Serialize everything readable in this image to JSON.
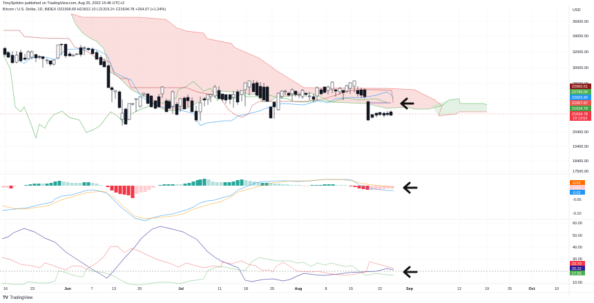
{
  "header": {
    "published": "TonySpilotro published on TradingView.com, Aug 25, 2022 15:46 UTC+2",
    "symbol_line": "Bitcoin / U.S. Dollar, 1D, INDEX  O21368.69  H21812.10  L21315.24  C21634.78  +264.07 (+1.24%)"
  },
  "footer": {
    "logo_mark": "TV",
    "brand": "TradingView"
  },
  "chart_data": [
    {
      "type": "candlestick",
      "title": "Bitcoin / U.S. Dollar, 1D, INDEX",
      "ohlc_last": {
        "open": 21368.69,
        "high": 21812.1,
        "low": 21315.24,
        "close": 21634.78,
        "change": 264.07,
        "change_pct": 1.24
      },
      "currency": "USD",
      "y_ticks": [
        "36000.00",
        "34000.00",
        "32000.00",
        "30000.00",
        "28000.00",
        "26000.00",
        "20400.00",
        "19400.00",
        "18400.00",
        "17500.00"
      ],
      "price_tags": [
        {
          "value": "22966.61",
          "color": "#8b1a1a",
          "series": "Senkou Span B"
        },
        {
          "value": "22795.00",
          "color": "#4caf50",
          "series": "Senkou Span A"
        },
        {
          "value": "22603.40",
          "color": "#2196f3",
          "series": "Conversion Line"
        },
        {
          "value": "21907.87",
          "color": "#ef5350",
          "series": "Base Line"
        },
        {
          "value": "21634.78",
          "color": "#43a047",
          "series": "Lagging Span"
        },
        {
          "value": "21634.78",
          "sub": "10:13:52",
          "color": "#f23645",
          "series": "Last Price"
        }
      ],
      "indicators": [
        "Ichimoku Cloud"
      ],
      "annotation": "arrow pointing left at price near cloud"
    },
    {
      "type": "bar+line",
      "title": "MACD",
      "y_ticks": [
        "0.05",
        "-0.05",
        "-0.10"
      ],
      "value_tags": [
        {
          "value": "-0.01",
          "color": "#ff6d00",
          "series": "Signal"
        },
        {
          "value": "-0.01",
          "color": "#ffcdd2",
          "series": "Histogram"
        },
        {
          "value": "-0.02",
          "color": "#2196f3",
          "series": "MACD"
        }
      ],
      "annotation": "arrow pointing left at MACD crossover"
    },
    {
      "type": "line",
      "title": "DMI / ADX",
      "y_ticks": [
        "60.00",
        "50.00",
        "40.00",
        "30.00",
        "10.00"
      ],
      "value_tags": [
        {
          "value": "23.79",
          "color": "#f23645",
          "series": "-DI"
        },
        {
          "value": "20.32",
          "color": "#311b92",
          "series": "ADX"
        },
        {
          "value": "17.55",
          "color": "#4caf50",
          "series": "+DI"
        }
      ],
      "reference_line": 20,
      "annotation": "arrow pointing left at DMI lines"
    }
  ],
  "x_axis": {
    "ticks": [
      {
        "label": "16",
        "bold": false
      },
      {
        "label": "23",
        "bold": false
      },
      {
        "label": "Jun",
        "bold": true
      },
      {
        "label": "7",
        "bold": false
      },
      {
        "label": "13",
        "bold": false
      },
      {
        "label": "20",
        "bold": false
      },
      {
        "label": "Jul",
        "bold": true
      },
      {
        "label": "11",
        "bold": false
      },
      {
        "label": "18",
        "bold": false
      },
      {
        "label": "25",
        "bold": false
      },
      {
        "label": "Aug",
        "bold": true
      },
      {
        "label": "8",
        "bold": false
      },
      {
        "label": "15",
        "bold": false
      },
      {
        "label": "22",
        "bold": false
      },
      {
        "label": "Sep",
        "bold": true
      },
      {
        "label": "12",
        "bold": false
      },
      {
        "label": "19",
        "bold": false
      },
      {
        "label": "25",
        "bold": false
      },
      {
        "label": "Oct",
        "bold": true
      },
      {
        "label": "10",
        "bold": false
      }
    ]
  },
  "axis_unit": "USD"
}
